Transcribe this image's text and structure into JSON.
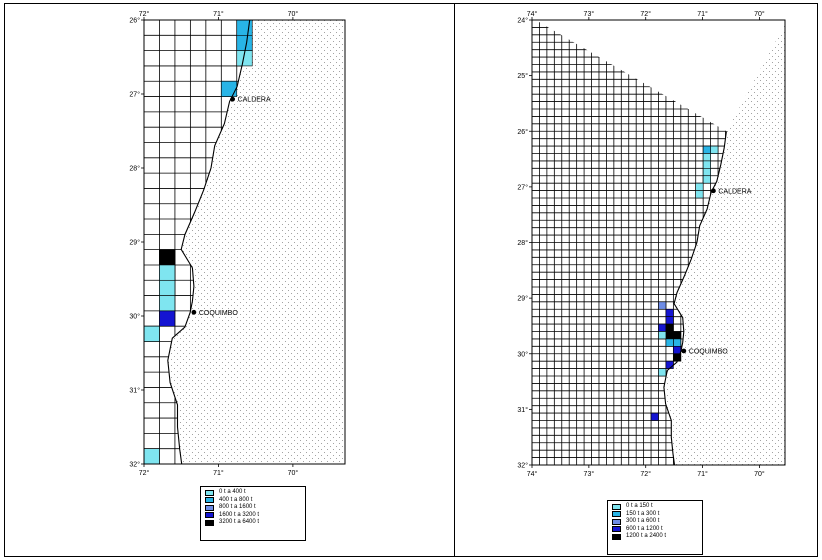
{
  "maps": [
    {
      "id": "left",
      "lon_ticks": [
        "72°",
        "71°",
        "70°"
      ],
      "lat_ticks": [
        "26°",
        "27°",
        "28°",
        "29°",
        "30°",
        "31°",
        "32°"
      ],
      "cities": [
        {
          "name": "CALDERA",
          "lat": 27.07,
          "lon": 70.81
        },
        {
          "name": "COQUIMBO",
          "lat": 29.95,
          "lon": 71.33
        }
      ],
      "legend": [
        {
          "label": "0 t  a  400 t",
          "color": "#7fe5f0"
        },
        {
          "label": "400 t  a  800 t",
          "color": "#28b4e6"
        },
        {
          "label": "800 t  a  1600 t",
          "color": "#6e8ce6"
        },
        {
          "label": "1600 t  a  3200 t",
          "color": "#1414d2"
        },
        {
          "label": "3200 t  a  6400 t",
          "color": "#000000"
        }
      ],
      "cells": [
        {
          "lat": 26.2,
          "lon": 70.7,
          "class": 1
        },
        {
          "lat": 26.3,
          "lon": 70.7,
          "class": 1
        },
        {
          "lat": 26.4,
          "lon": 70.7,
          "class": 1
        },
        {
          "lat": 26.5,
          "lon": 70.7,
          "class": 0
        },
        {
          "lat": 26.9,
          "lon": 70.9,
          "class": 1
        },
        {
          "lat": 29.2,
          "lon": 71.7,
          "class": 4
        },
        {
          "lat": 29.3,
          "lon": 71.7,
          "class": 0
        },
        {
          "lat": 29.4,
          "lon": 71.7,
          "class": 0
        },
        {
          "lat": 29.3,
          "lon": 71.6,
          "class": 4
        },
        {
          "lat": 29.4,
          "lon": 71.6,
          "class": 2
        },
        {
          "lat": 29.5,
          "lon": 71.6,
          "class": 1
        },
        {
          "lat": 29.6,
          "lon": 71.6,
          "class": 0
        },
        {
          "lat": 29.7,
          "lon": 71.6,
          "class": 0
        },
        {
          "lat": 29.8,
          "lon": 71.6,
          "class": 0
        },
        {
          "lat": 29.5,
          "lon": 71.7,
          "class": 0
        },
        {
          "lat": 30.0,
          "lon": 71.6,
          "class": 3
        },
        {
          "lat": 30.2,
          "lon": 71.9,
          "class": 0
        },
        {
          "lat": 30.3,
          "lon": 71.9,
          "class": 0
        },
        {
          "lat": 31.8,
          "lon": 71.8,
          "class": 0
        }
      ]
    },
    {
      "id": "right",
      "lon_ticks": [
        "74°",
        "73°",
        "72°",
        "71°",
        "70°"
      ],
      "lat_ticks": [
        "24°",
        "25°",
        "26°",
        "27°",
        "28°",
        "29°",
        "30°",
        "31°",
        "32°"
      ],
      "cities": [
        {
          "name": "CALDERA",
          "lat": 27.07,
          "lon": 70.81
        },
        {
          "name": "COQUIMBO",
          "lat": 29.95,
          "lon": 71.33
        }
      ],
      "legend": [
        {
          "label": "0 t  a  150 t",
          "color": "#7fe5f0"
        },
        {
          "label": "150 t  a  300 t",
          "color": "#28b4e6"
        },
        {
          "label": "300 t  a  600 t",
          "color": "#6e8ce6"
        },
        {
          "label": "600 t  a  1200 t",
          "color": "#1414d2"
        },
        {
          "label": "1200 t  a  2400 t",
          "color": "#000000"
        }
      ],
      "cells": [
        {
          "lat": 26.3,
          "lon": 70.8,
          "class": 0
        },
        {
          "lat": 26.4,
          "lon": 70.9,
          "class": 1
        },
        {
          "lat": 26.5,
          "lon": 70.9,
          "class": 0
        },
        {
          "lat": 26.6,
          "lon": 70.9,
          "class": 0
        },
        {
          "lat": 26.7,
          "lon": 70.9,
          "class": 0
        },
        {
          "lat": 26.8,
          "lon": 70.9,
          "class": 2
        },
        {
          "lat": 26.9,
          "lon": 70.9,
          "class": 0
        },
        {
          "lat": 27.0,
          "lon": 71.0,
          "class": 0
        },
        {
          "lat": 27.1,
          "lon": 71.0,
          "class": 0
        },
        {
          "lat": 29.2,
          "lon": 71.7,
          "class": 2
        },
        {
          "lat": 29.3,
          "lon": 71.6,
          "class": 3
        },
        {
          "lat": 29.4,
          "lon": 71.6,
          "class": 3
        },
        {
          "lat": 29.5,
          "lon": 71.7,
          "class": 3
        },
        {
          "lat": 29.5,
          "lon": 71.6,
          "class": 4
        },
        {
          "lat": 29.6,
          "lon": 71.6,
          "class": 4
        },
        {
          "lat": 29.6,
          "lon": 71.7,
          "class": 0
        },
        {
          "lat": 29.7,
          "lon": 71.5,
          "class": 4
        },
        {
          "lat": 29.8,
          "lon": 71.5,
          "class": 1
        },
        {
          "lat": 29.8,
          "lon": 71.6,
          "class": 1
        },
        {
          "lat": 29.9,
          "lon": 71.5,
          "class": 3
        },
        {
          "lat": 30.0,
          "lon": 71.5,
          "class": 4
        },
        {
          "lat": 30.1,
          "lon": 71.5,
          "class": 4
        },
        {
          "lat": 30.2,
          "lon": 71.6,
          "class": 3
        },
        {
          "lat": 30.4,
          "lon": 71.7,
          "class": 0
        },
        {
          "lat": 31.2,
          "lon": 71.8,
          "class": 3
        }
      ]
    }
  ],
  "coast": [
    [
      26.0,
      70.58
    ],
    [
      26.3,
      70.62
    ],
    [
      26.6,
      70.68
    ],
    [
      26.9,
      70.75
    ],
    [
      27.1,
      70.85
    ],
    [
      27.4,
      70.92
    ],
    [
      27.7,
      71.05
    ],
    [
      28.0,
      71.1
    ],
    [
      28.3,
      71.2
    ],
    [
      28.6,
      71.32
    ],
    [
      28.9,
      71.45
    ],
    [
      29.1,
      71.5
    ],
    [
      29.35,
      71.35
    ],
    [
      29.6,
      71.33
    ],
    [
      29.8,
      71.35
    ],
    [
      29.95,
      71.38
    ],
    [
      30.15,
      71.45
    ],
    [
      30.3,
      71.62
    ],
    [
      30.6,
      71.68
    ],
    [
      30.9,
      71.65
    ],
    [
      31.2,
      71.55
    ],
    [
      31.5,
      71.55
    ],
    [
      31.8,
      71.52
    ],
    [
      32.1,
      71.48
    ]
  ]
}
